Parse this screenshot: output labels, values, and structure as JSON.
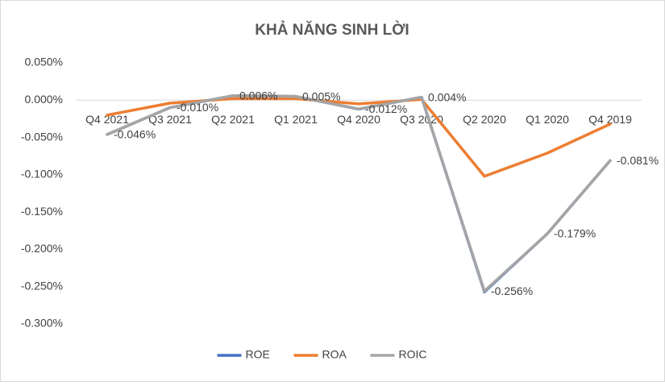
{
  "chart_data": {
    "type": "line",
    "title": "KHẢ NĂNG SINH LỜI",
    "categories": [
      "Q4 2021",
      "Q3 2021",
      "Q2 2021",
      "Q1 2021",
      "Q4 2020",
      "Q3 2020",
      "Q2 2020",
      "Q1 2020",
      "Q4 2019"
    ],
    "series": [
      {
        "name": "ROE",
        "color": "#4472c4",
        "values": [
          -0.046,
          -0.01,
          0.006,
          0.005,
          -0.012,
          0.004,
          -0.257,
          -0.179,
          -0.081
        ]
      },
      {
        "name": "ROA",
        "color": "#ed7d31",
        "values": [
          -0.02,
          -0.004,
          0.002,
          0.002,
          -0.005,
          0.001,
          -0.102,
          -0.071,
          -0.032
        ]
      },
      {
        "name": "ROIC",
        "color": "#a5a5a5",
        "values": [
          -0.046,
          -0.01,
          0.006,
          0.005,
          -0.012,
          0.004,
          -0.256,
          -0.179,
          -0.081
        ],
        "value_labels": [
          "-0.046%",
          "-0.010%",
          "0.006%",
          "0.005%",
          "-0.012%",
          "0.004%",
          "-0.256%",
          "-0.179%",
          "-0.081%"
        ]
      }
    ],
    "ylim": [
      -0.3,
      0.05
    ],
    "yticks": [
      {
        "value": 0.05,
        "label": "0.050%"
      },
      {
        "value": 0,
        "label": "0.000%"
      },
      {
        "value": -0.05,
        "label": "-0.050%"
      },
      {
        "value": -0.1,
        "label": "-0.100%"
      },
      {
        "value": -0.15,
        "label": "-0.150%"
      },
      {
        "value": -0.2,
        "label": "-0.200%"
      },
      {
        "value": -0.25,
        "label": "-0.250%"
      },
      {
        "value": -0.3,
        "label": "-0.300%"
      }
    ],
    "legend": "bottom"
  }
}
